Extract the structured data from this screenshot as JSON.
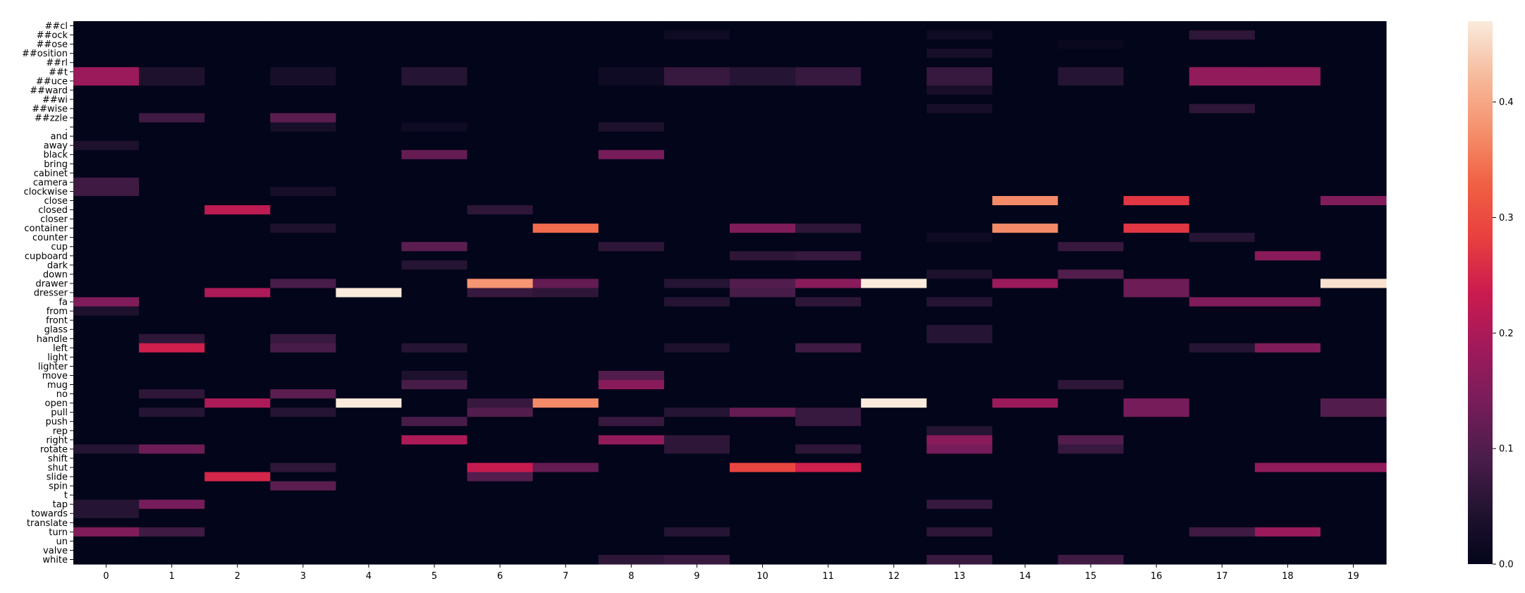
{
  "chart_data": {
    "type": "heatmap",
    "title": "",
    "xlabel": "",
    "ylabel": "",
    "x_labels": [
      "0",
      "1",
      "2",
      "3",
      "4",
      "5",
      "6",
      "7",
      "8",
      "9",
      "10",
      "11",
      "12",
      "13",
      "14",
      "15",
      "16",
      "17",
      "18",
      "19"
    ],
    "y_labels": [
      "##cl",
      "##ock",
      "##ose",
      "##osition",
      "##rl",
      "##t",
      "##uce",
      "##ward",
      "##wi",
      "##wise",
      "##zzle",
      ".",
      "and",
      "away",
      "black",
      "bring",
      "cabinet",
      "camera",
      "clockwise",
      "close",
      "closed",
      "closer",
      "container",
      "counter",
      "cup",
      "cupboard",
      "dark",
      "down",
      "drawer",
      "dresser",
      "fa",
      "from",
      "front",
      "glass",
      "handle",
      "left",
      "light",
      "lighter",
      "move",
      "mug",
      "no",
      "open",
      "pull",
      "push",
      "rep",
      "right",
      "rotate",
      "shift",
      "shut",
      "slide",
      "spin",
      "t",
      "tap",
      "towards",
      "translate",
      "turn",
      "un",
      "valve",
      "white"
    ],
    "colorbar": {
      "min": 0.0,
      "max": 0.47,
      "ticks": [
        "0.0",
        "0.1",
        "0.2",
        "0.3",
        "0.4"
      ],
      "tick_values": [
        0,
        0.1,
        0.2,
        0.3,
        0.4
      ]
    },
    "cells": [
      [
        "##ock",
        9,
        0.02
      ],
      [
        "##ock",
        13,
        0.02
      ],
      [
        "##ock",
        17,
        0.06
      ],
      [
        "##ose",
        15,
        0.01
      ],
      [
        "##osition",
        13,
        0.03
      ],
      [
        "##t",
        0,
        0.18
      ],
      [
        "##t",
        1,
        0.04
      ],
      [
        "##t",
        3,
        0.03
      ],
      [
        "##t",
        5,
        0.05
      ],
      [
        "##t",
        8,
        0.02
      ],
      [
        "##t",
        9,
        0.07
      ],
      [
        "##t",
        10,
        0.05
      ],
      [
        "##t",
        11,
        0.07
      ],
      [
        "##t",
        13,
        0.07
      ],
      [
        "##t",
        15,
        0.05
      ],
      [
        "##t",
        17,
        0.17
      ],
      [
        "##t",
        18,
        0.17
      ],
      [
        "##uce",
        0,
        0.18
      ],
      [
        "##uce",
        1,
        0.04
      ],
      [
        "##uce",
        3,
        0.03
      ],
      [
        "##uce",
        5,
        0.05
      ],
      [
        "##uce",
        8,
        0.02
      ],
      [
        "##uce",
        9,
        0.07
      ],
      [
        "##uce",
        10,
        0.05
      ],
      [
        "##uce",
        11,
        0.07
      ],
      [
        "##uce",
        13,
        0.07
      ],
      [
        "##uce",
        15,
        0.05
      ],
      [
        "##uce",
        17,
        0.17
      ],
      [
        "##uce",
        18,
        0.17
      ],
      [
        "##ward",
        13,
        0.03
      ],
      [
        "##wise",
        13,
        0.03
      ],
      [
        "##wise",
        17,
        0.06
      ],
      [
        "##zzle",
        1,
        0.08
      ],
      [
        "##zzle",
        3,
        0.11
      ],
      [
        ".",
        3,
        0.03
      ],
      [
        ".",
        5,
        0.02
      ],
      [
        ".",
        8,
        0.04
      ],
      [
        "away",
        0,
        0.04
      ],
      [
        "black",
        5,
        0.12
      ],
      [
        "black",
        8,
        0.14
      ],
      [
        "camera",
        0,
        0.08
      ],
      [
        "clockwise",
        0,
        0.08
      ],
      [
        "clockwise",
        3,
        0.03
      ],
      [
        "close",
        14,
        0.37
      ],
      [
        "close",
        16,
        0.27
      ],
      [
        "close",
        19,
        0.15
      ],
      [
        "closed",
        2,
        0.22
      ],
      [
        "closed",
        6,
        0.06
      ],
      [
        "container",
        3,
        0.04
      ],
      [
        "container",
        7,
        0.34
      ],
      [
        "container",
        10,
        0.15
      ],
      [
        "container",
        11,
        0.06
      ],
      [
        "container",
        14,
        0.37
      ],
      [
        "container",
        16,
        0.27
      ],
      [
        "counter",
        13,
        0.02
      ],
      [
        "counter",
        17,
        0.05
      ],
      [
        "cup",
        5,
        0.11
      ],
      [
        "cup",
        8,
        0.06
      ],
      [
        "cup",
        15,
        0.07
      ],
      [
        "cupboard",
        10,
        0.06
      ],
      [
        "cupboard",
        11,
        0.07
      ],
      [
        "cupboard",
        18,
        0.16
      ],
      [
        "dark",
        5,
        0.05
      ],
      [
        "down",
        13,
        0.04
      ],
      [
        "down",
        15,
        0.1
      ],
      [
        "drawer",
        3,
        0.09
      ],
      [
        "drawer",
        6,
        0.38
      ],
      [
        "drawer",
        7,
        0.12
      ],
      [
        "drawer",
        9,
        0.05
      ],
      [
        "drawer",
        10,
        0.1
      ],
      [
        "drawer",
        11,
        0.16
      ],
      [
        "drawer",
        12,
        0.47
      ],
      [
        "drawer",
        14,
        0.18
      ],
      [
        "drawer",
        16,
        0.13
      ],
      [
        "drawer",
        19,
        0.46
      ],
      [
        "dresser",
        2,
        0.2
      ],
      [
        "dresser",
        4,
        0.47
      ],
      [
        "dresser",
        6,
        0.07
      ],
      [
        "dresser",
        7,
        0.06
      ],
      [
        "dresser",
        10,
        0.09
      ],
      [
        "dresser",
        16,
        0.13
      ],
      [
        "fa",
        0,
        0.15
      ],
      [
        "fa",
        9,
        0.05
      ],
      [
        "fa",
        11,
        0.06
      ],
      [
        "fa",
        13,
        0.05
      ],
      [
        "fa",
        17,
        0.15
      ],
      [
        "fa",
        18,
        0.15
      ],
      [
        "from",
        0,
        0.04
      ],
      [
        "glass",
        13,
        0.05
      ],
      [
        "handle",
        1,
        0.06
      ],
      [
        "handle",
        3,
        0.07
      ],
      [
        "handle",
        13,
        0.05
      ],
      [
        "left",
        1,
        0.24
      ],
      [
        "left",
        3,
        0.09
      ],
      [
        "left",
        5,
        0.05
      ],
      [
        "left",
        9,
        0.04
      ],
      [
        "left",
        11,
        0.08
      ],
      [
        "left",
        17,
        0.05
      ],
      [
        "left",
        18,
        0.15
      ],
      [
        "move",
        5,
        0.04
      ],
      [
        "move",
        8,
        0.1
      ],
      [
        "mug",
        5,
        0.09
      ],
      [
        "mug",
        8,
        0.16
      ],
      [
        "mug",
        15,
        0.06
      ],
      [
        "no",
        1,
        0.06
      ],
      [
        "no",
        3,
        0.11
      ],
      [
        "open",
        2,
        0.2
      ],
      [
        "open",
        4,
        0.47
      ],
      [
        "open",
        6,
        0.07
      ],
      [
        "open",
        7,
        0.37
      ],
      [
        "open",
        12,
        0.47
      ],
      [
        "open",
        14,
        0.18
      ],
      [
        "open",
        16,
        0.14
      ],
      [
        "open",
        19,
        0.1
      ],
      [
        "pull",
        1,
        0.05
      ],
      [
        "pull",
        3,
        0.05
      ],
      [
        "pull",
        6,
        0.1
      ],
      [
        "pull",
        9,
        0.05
      ],
      [
        "pull",
        10,
        0.12
      ],
      [
        "pull",
        11,
        0.07
      ],
      [
        "pull",
        16,
        0.14
      ],
      [
        "pull",
        19,
        0.1
      ],
      [
        "push",
        5,
        0.09
      ],
      [
        "push",
        8,
        0.07
      ],
      [
        "push",
        11,
        0.07
      ],
      [
        "rep",
        13,
        0.05
      ],
      [
        "right",
        5,
        0.2
      ],
      [
        "right",
        8,
        0.17
      ],
      [
        "right",
        9,
        0.06
      ],
      [
        "right",
        13,
        0.16
      ],
      [
        "right",
        15,
        0.1
      ],
      [
        "rotate",
        0,
        0.05
      ],
      [
        "rotate",
        1,
        0.13
      ],
      [
        "rotate",
        9,
        0.06
      ],
      [
        "rotate",
        11,
        0.06
      ],
      [
        "rotate",
        13,
        0.14
      ],
      [
        "rotate",
        15,
        0.07
      ],
      [
        "shut",
        3,
        0.06
      ],
      [
        "shut",
        6,
        0.23
      ],
      [
        "shut",
        7,
        0.12
      ],
      [
        "shut",
        10,
        0.29
      ],
      [
        "shut",
        11,
        0.24
      ],
      [
        "shut",
        18,
        0.17
      ],
      [
        "shut",
        19,
        0.17
      ],
      [
        "slide",
        2,
        0.25
      ],
      [
        "slide",
        6,
        0.1
      ],
      [
        "spin",
        3,
        0.11
      ],
      [
        "tap",
        0,
        0.05
      ],
      [
        "tap",
        1,
        0.14
      ],
      [
        "tap",
        13,
        0.07
      ],
      [
        "towards",
        0,
        0.05
      ],
      [
        "turn",
        0,
        0.15
      ],
      [
        "turn",
        1,
        0.08
      ],
      [
        "turn",
        9,
        0.05
      ],
      [
        "turn",
        13,
        0.06
      ],
      [
        "turn",
        17,
        0.08
      ],
      [
        "turn",
        18,
        0.18
      ],
      [
        "white",
        8,
        0.06
      ],
      [
        "white",
        9,
        0.07
      ],
      [
        "white",
        13,
        0.07
      ],
      [
        "white",
        15,
        0.08
      ]
    ]
  }
}
